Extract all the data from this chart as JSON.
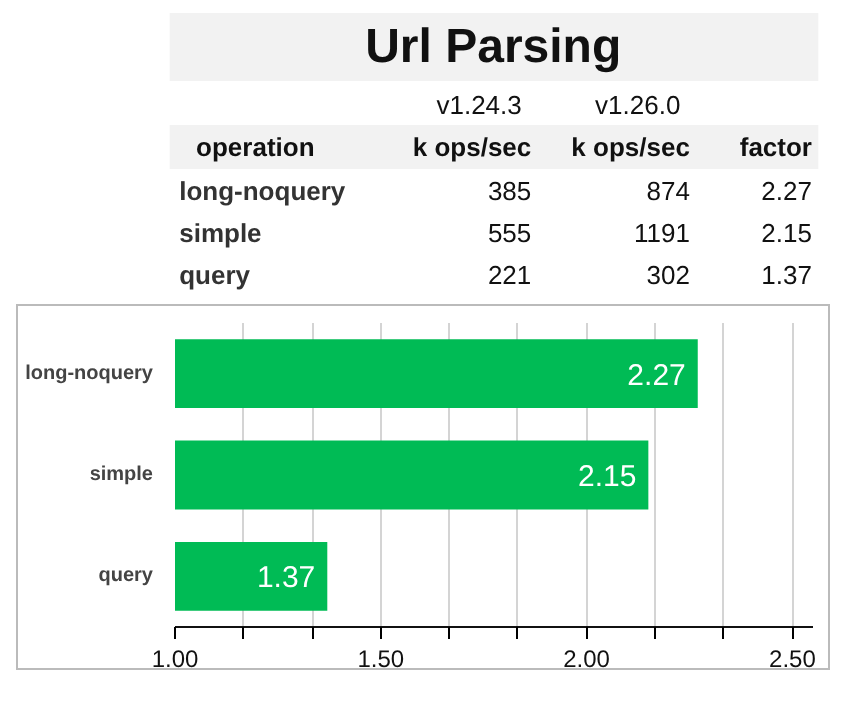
{
  "chart_data": [
    {
      "type": "other",
      "title": "Url Parsing",
      "categories": [
        "long-noquery",
        "simple",
        "query"
      ],
      "annotations": [
        "operation",
        "k ops/sec",
        "k ops/sec",
        "factor"
      ],
      "series": [
        {
          "name": "v1.24.3",
          "values": [
            385,
            555,
            221
          ]
        },
        {
          "name": "v1.26.0",
          "values": [
            874,
            1191,
            302
          ]
        },
        {
          "values": [
            2.27,
            2.15,
            1.37
          ]
        }
      ],
      "data_labels": true
    },
    {
      "type": "bar",
      "orientation": "horizontal",
      "categories": [
        "long-noquery",
        "simple",
        "query"
      ],
      "values": [
        2.27,
        2.15,
        1.37
      ],
      "color": "#00bb55",
      "data_labels": true,
      "grid": "x",
      "xlim": [
        1.0,
        2.55
      ],
      "xticks": [
        {
          "value": 1.0,
          "label": "1.00"
        },
        {
          "value": 1.1667,
          "label": null
        },
        {
          "value": 1.3333,
          "label": null
        },
        {
          "value": 1.5,
          "label": "1.50"
        },
        {
          "value": 1.6667,
          "label": null
        },
        {
          "value": 1.8333,
          "label": null
        },
        {
          "value": 2.0,
          "label": "2.00"
        },
        {
          "value": 2.1667,
          "label": null
        },
        {
          "value": 2.3333,
          "label": null
        },
        {
          "value": 2.5,
          "label": "2.50"
        }
      ]
    }
  ]
}
